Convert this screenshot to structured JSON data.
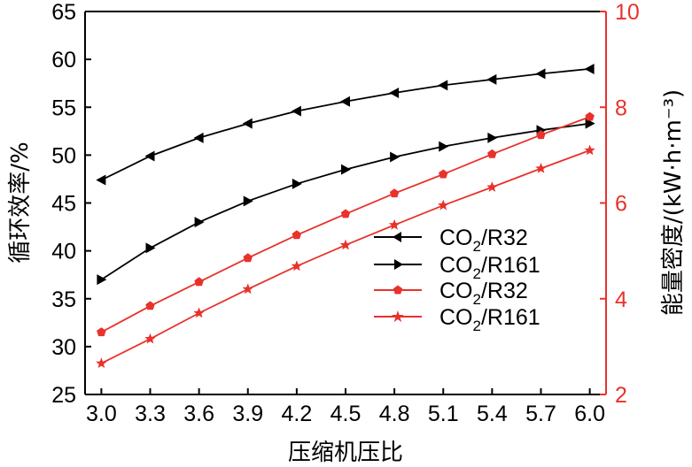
{
  "chart_data": {
    "type": "line",
    "xlabel": "压缩机压比",
    "ylabel_left": "循环效率/%",
    "ylabel_right": "能量密度/(kW·h·m⁻³)",
    "x": [
      3.0,
      3.3,
      3.6,
      3.9,
      4.2,
      4.5,
      4.8,
      5.1,
      5.4,
      5.7,
      6.0
    ],
    "x_tick_labels": [
      "3.0",
      "3.3",
      "3.6",
      "3.9",
      "4.2",
      "4.5",
      "4.8",
      "5.1",
      "5.4",
      "5.7",
      "6.0"
    ],
    "xlim": [
      2.9,
      6.1
    ],
    "ylim_left": [
      25,
      65
    ],
    "ylim_right": [
      2,
      10
    ],
    "y_left_ticks": [
      "25",
      "30",
      "35",
      "40",
      "45",
      "50",
      "55",
      "60",
      "65"
    ],
    "y_right_ticks": [
      "2",
      "4",
      "6",
      "8",
      "10"
    ],
    "grid": false,
    "legend_position": "lower-right",
    "series": [
      {
        "name": "CO2/R32",
        "name_parts": [
          "CO",
          "2",
          "/R32"
        ],
        "axis": "left",
        "color": "#000000",
        "marker": "triangle-left",
        "values": [
          47.4,
          49.9,
          51.8,
          53.3,
          54.6,
          55.6,
          56.5,
          57.3,
          57.9,
          58.5,
          59.0
        ]
      },
      {
        "name": "CO2/R161",
        "name_parts": [
          "CO",
          "2",
          "/R161"
        ],
        "axis": "left",
        "color": "#000000",
        "marker": "triangle-right",
        "values": [
          37.0,
          40.3,
          43.0,
          45.2,
          47.0,
          48.5,
          49.8,
          50.9,
          51.8,
          52.6,
          53.3
        ]
      },
      {
        "name": "CO2/R32",
        "name_parts": [
          "CO",
          "2",
          "/R32"
        ],
        "axis": "right",
        "color": "#e8322b",
        "marker": "pentagon",
        "values": [
          3.3,
          3.85,
          4.35,
          4.85,
          5.33,
          5.77,
          6.2,
          6.6,
          7.02,
          7.42,
          7.8
        ]
      },
      {
        "name": "CO2/R161",
        "name_parts": [
          "CO",
          "2",
          "/R161"
        ],
        "axis": "right",
        "color": "#e8322b",
        "marker": "star",
        "values": [
          2.65,
          3.16,
          3.7,
          4.2,
          4.68,
          5.12,
          5.54,
          5.95,
          6.33,
          6.72,
          7.1
        ]
      }
    ]
  }
}
